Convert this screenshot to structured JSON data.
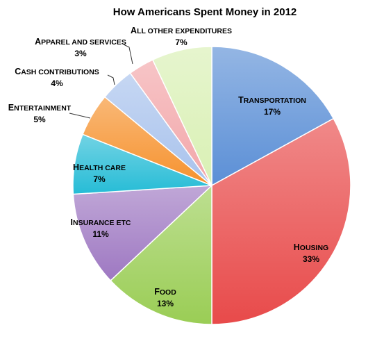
{
  "chart_data": {
    "type": "pie",
    "title": "How Americans Spent Money in 2012",
    "start_angle_deg": 0,
    "direction": "clockwise",
    "legend": "none",
    "slices": [
      {
        "label": "Transportation",
        "value": 17,
        "value_label": "17%",
        "color": "#5B8FD6"
      },
      {
        "label": "Housing",
        "value": 33,
        "value_label": "33%",
        "color": "#E84A4A"
      },
      {
        "label": "Food",
        "value": 13,
        "value_label": "13%",
        "color": "#9ACD55"
      },
      {
        "label": "Insurance etc",
        "value": 11,
        "value_label": "11%",
        "color": "#9E78C2"
      },
      {
        "label": "Health care",
        "value": 7,
        "value_label": "7%",
        "color": "#26BCD6"
      },
      {
        "label": "Entertainment",
        "value": 5,
        "value_label": "5%",
        "color": "#F6922E"
      },
      {
        "label": "Cash contributions",
        "value": 4,
        "value_label": "4%",
        "color": "#A8C2EC"
      },
      {
        "label": "Apparel and services",
        "value": 3,
        "value_label": "3%",
        "color": "#F2A6A9"
      },
      {
        "label": "All other expenditures",
        "value": 7,
        "value_label": "7%",
        "color": "#D9F0B4"
      }
    ]
  }
}
